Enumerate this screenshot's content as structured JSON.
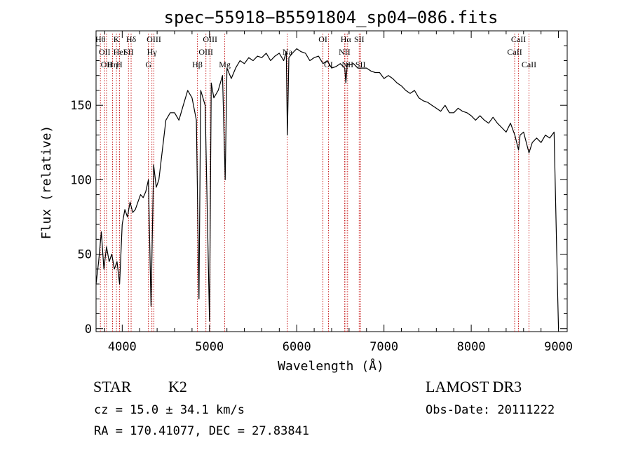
{
  "title": "spec−55918−B5591804_sp04−086.fits",
  "chart_data": {
    "type": "line",
    "xlabel": "Wavelength (Å)",
    "ylabel": "Flux (relative)",
    "xlim": [
      3700,
      9100
    ],
    "ylim": [
      -2,
      200
    ],
    "xticks": [
      4000,
      5000,
      6000,
      7000,
      8000,
      9000
    ],
    "xtick_labels": [
      "4000",
      "5000",
      "6000",
      "7000",
      "8000",
      "9000"
    ],
    "yticks": [
      0,
      50,
      100,
      150
    ],
    "ytick_labels": [
      "0",
      "50",
      "100",
      "150"
    ],
    "grid": false,
    "series": [
      {
        "x": [
          3700,
          3730,
          3760,
          3790,
          3820,
          3850,
          3880,
          3910,
          3940,
          3970,
          4000,
          4030,
          4060,
          4090,
          4120,
          4150,
          4180,
          4210,
          4240,
          4270,
          4300,
          4330,
          4360,
          4390,
          4420,
          4460,
          4500,
          4550,
          4600,
          4650,
          4700,
          4750,
          4800,
          4850,
          4880,
          4900,
          4950,
          5000,
          5020,
          5050,
          5100,
          5150,
          5180,
          5200,
          5250,
          5300,
          5350,
          5400,
          5450,
          5500,
          5550,
          5600,
          5650,
          5700,
          5750,
          5800,
          5850,
          5880,
          5893,
          5910,
          5950,
          6000,
          6050,
          6100,
          6150,
          6200,
          6250,
          6300,
          6350,
          6400,
          6450,
          6500,
          6550,
          6563,
          6580,
          6600,
          6650,
          6700,
          6750,
          6800,
          6850,
          6900,
          6950,
          7000,
          7050,
          7100,
          7150,
          7200,
          7250,
          7300,
          7350,
          7400,
          7450,
          7500,
          7550,
          7600,
          7650,
          7700,
          7750,
          7800,
          7850,
          7900,
          7950,
          8000,
          8050,
          8100,
          8150,
          8200,
          8250,
          8300,
          8350,
          8400,
          8450,
          8500,
          8542,
          8560,
          8600,
          8662,
          8700,
          8750,
          8800,
          8850,
          8900,
          8950,
          8990,
          9000
        ],
        "y": [
          30,
          45,
          65,
          40,
          55,
          45,
          50,
          40,
          45,
          30,
          70,
          80,
          75,
          85,
          78,
          80,
          85,
          90,
          88,
          92,
          100,
          15,
          110,
          95,
          100,
          120,
          140,
          145,
          145,
          140,
          150,
          160,
          155,
          140,
          20,
          160,
          150,
          5,
          165,
          155,
          160,
          170,
          100,
          175,
          168,
          175,
          180,
          178,
          182,
          180,
          183,
          182,
          185,
          180,
          183,
          185,
          180,
          186,
          130,
          182,
          185,
          188,
          186,
          185,
          180,
          182,
          183,
          178,
          180,
          175,
          176,
          178,
          175,
          165,
          178,
          177,
          178,
          175,
          175,
          175,
          173,
          172,
          172,
          168,
          170,
          168,
          165,
          163,
          160,
          158,
          160,
          155,
          153,
          152,
          150,
          148,
          146,
          150,
          145,
          145,
          148,
          146,
          145,
          143,
          140,
          143,
          140,
          138,
          142,
          138,
          135,
          132,
          138,
          130,
          120,
          130,
          132,
          118,
          125,
          128,
          125,
          130,
          128,
          132,
          25,
          0
        ]
      }
    ],
    "line_markers": [
      {
        "w": 3750,
        "label": "Hθ",
        "row": 0
      },
      {
        "w": 3798,
        "label": "OII",
        "row": 1
      },
      {
        "w": 3820,
        "label": "OII",
        "row": 2
      },
      {
        "w": 3889,
        "label": "Hη",
        "row": 2
      },
      {
        "w": 3934,
        "label": "K",
        "row": 0
      },
      {
        "w": 3968,
        "label": "H",
        "row": 2
      },
      {
        "w": 3970,
        "label": "HeI",
        "row": 1
      },
      {
        "w": 4072,
        "label": "SII",
        "row": 1
      },
      {
        "w": 4102,
        "label": "Hδ",
        "row": 0
      },
      {
        "w": 4300,
        "label": "G",
        "row": 2
      },
      {
        "w": 4340,
        "label": "Hγ",
        "row": 1
      },
      {
        "w": 4363,
        "label": "OIII",
        "row": 0
      },
      {
        "w": 4861,
        "label": "Hβ",
        "row": 2
      },
      {
        "w": 4959,
        "label": "OIII",
        "row": 1
      },
      {
        "w": 5007,
        "label": "OIII",
        "row": 0
      },
      {
        "w": 5175,
        "label": "Mg",
        "row": 2
      },
      {
        "w": 5893,
        "label": "Na",
        "row": 1
      },
      {
        "w": 6300,
        "label": "OI",
        "row": 0
      },
      {
        "w": 6364,
        "label": "OI",
        "row": 2
      },
      {
        "w": 6548,
        "label": "NII",
        "row": 1
      },
      {
        "w": 6563,
        "label": "Hα",
        "row": 0
      },
      {
        "w": 6583,
        "label": "NII",
        "row": 2
      },
      {
        "w": 6716,
        "label": "SII",
        "row": 0
      },
      {
        "w": 6731,
        "label": "SII",
        "row": 2
      },
      {
        "w": 8498,
        "label": "CaII",
        "row": 1
      },
      {
        "w": 8542,
        "label": "CaII",
        "row": 0
      },
      {
        "w": 8662,
        "label": "CaII",
        "row": 2
      }
    ],
    "marker_color": "#c81e1e",
    "line_color": "#000000"
  },
  "footer": {
    "object_class": "STAR",
    "subclass": "K2",
    "redshift": "cz = 15.0 ± 34.1 km/s",
    "coords": "RA = 170.41077, DEC =  27.83841",
    "survey": "LAMOST DR3",
    "obs_date": "Obs-Date: 20111222"
  }
}
